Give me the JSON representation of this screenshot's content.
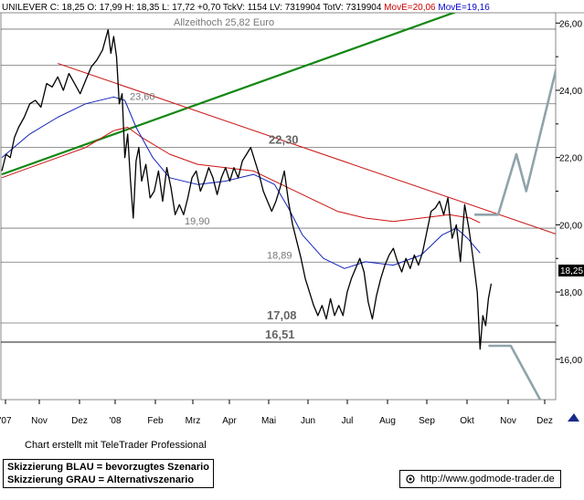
{
  "header": {
    "name": "UNILEVER",
    "stats": " C: 18,25  O: 17,99  H: 18,35  L: 17,72  +0,70  TckV: 1154  LV: 7319904  TotV: 7319904 ",
    "move_red": "MovE=20,06",
    "move_blue": "MovE=19,16"
  },
  "colors": {
    "price": "#000000",
    "ma_red": "#cc1111",
    "ma_blue": "#1122bb",
    "trend_green": "#118811",
    "resistance_red": "#cc2222",
    "scenario_gray": "#8fa3ab",
    "gridline": "#000000",
    "header_red": "#cc0000",
    "header_blue": "#0000cc"
  },
  "chart_data": {
    "type": "line",
    "title": "UNILEVER",
    "ylim": [
      14.8,
      26.4
    ],
    "y_ticks": [
      "16,00",
      "18,00",
      "20,00",
      "22,00",
      "24,00",
      "26,00"
    ],
    "x_tick_labels": [
      "'07",
      "Nov",
      "Dez",
      "'08",
      "Feb",
      "Mrz",
      "Apr",
      "Mai",
      "Jun",
      "Jul",
      "Aug",
      "Sep",
      "Okt",
      "Nov",
      "Dez"
    ],
    "current_price_label": "18,25",
    "annotations": [
      {
        "text": "Allzeithoch  25,82 Euro",
        "y": 25.82,
        "bold": false
      },
      {
        "text": "23,60",
        "y": 23.6,
        "bold": false
      },
      {
        "text": "22,30",
        "y": 22.3,
        "bold": true
      },
      {
        "text": "19,90",
        "y": 19.9,
        "bold": false
      },
      {
        "text": "18,89",
        "y": 18.89,
        "bold": false
      },
      {
        "text": "17,08",
        "y": 17.08,
        "bold": true
      },
      {
        "text": "16,51",
        "y": 16.51,
        "bold": true
      }
    ],
    "horizontal_levels": [
      25.82,
      24.75,
      23.6,
      22.3,
      19.9,
      18.89,
      17.08,
      16.51
    ],
    "series": [
      {
        "name": "",
        "style": "price",
        "values": [
          [
            0,
            21.6
          ],
          [
            3,
            22.1
          ],
          [
            6,
            22.0
          ],
          [
            9,
            22.6
          ],
          [
            12,
            22.9
          ],
          [
            16,
            23.2
          ],
          [
            20,
            23.6
          ],
          [
            24,
            23.7
          ],
          [
            28,
            23.5
          ],
          [
            32,
            24.2
          ],
          [
            36,
            24.1
          ],
          [
            40,
            24.4
          ],
          [
            44,
            24.0
          ],
          [
            48,
            24.5
          ],
          [
            52,
            24.2
          ],
          [
            56,
            23.9
          ],
          [
            60,
            24.3
          ],
          [
            64,
            24.7
          ],
          [
            68,
            24.9
          ],
          [
            72,
            25.2
          ],
          [
            76,
            25.8
          ],
          [
            78,
            25.1
          ],
          [
            80,
            25.6
          ],
          [
            82,
            25.0
          ],
          [
            84,
            23.6
          ],
          [
            86,
            23.9
          ],
          [
            88,
            22.0
          ],
          [
            90,
            22.7
          ],
          [
            92,
            21.3
          ],
          [
            94,
            20.2
          ],
          [
            96,
            21.9
          ],
          [
            98,
            22.3
          ],
          [
            100,
            21.3
          ],
          [
            103,
            21.8
          ],
          [
            106,
            20.8
          ],
          [
            109,
            21.0
          ],
          [
            112,
            21.6
          ],
          [
            115,
            20.7
          ],
          [
            118,
            21.7
          ],
          [
            121,
            21.1
          ],
          [
            124,
            20.3
          ],
          [
            127,
            20.6
          ],
          [
            130,
            20.3
          ],
          [
            133,
            20.8
          ],
          [
            136,
            21.4
          ],
          [
            139,
            21.6
          ],
          [
            142,
            21.0
          ],
          [
            145,
            21.3
          ],
          [
            148,
            21.7
          ],
          [
            151,
            21.4
          ],
          [
            154,
            20.9
          ],
          [
            157,
            21.4
          ],
          [
            160,
            21.7
          ],
          [
            163,
            21.3
          ],
          [
            166,
            21.7
          ],
          [
            169,
            21.4
          ],
          [
            172,
            21.9
          ],
          [
            175,
            22.1
          ],
          [
            178,
            22.3
          ],
          [
            181,
            21.9
          ],
          [
            184,
            21.5
          ],
          [
            187,
            21.0
          ],
          [
            190,
            20.7
          ],
          [
            193,
            20.4
          ],
          [
            196,
            20.7
          ],
          [
            199,
            21.1
          ],
          [
            202,
            21.6
          ],
          [
            205,
            20.7
          ],
          [
            208,
            20.0
          ],
          [
            211,
            19.5
          ],
          [
            214,
            19.0
          ],
          [
            217,
            18.4
          ],
          [
            220,
            18.0
          ],
          [
            223,
            17.6
          ],
          [
            226,
            17.3
          ],
          [
            229,
            17.6
          ],
          [
            232,
            17.2
          ],
          [
            235,
            17.8
          ],
          [
            238,
            17.3
          ],
          [
            241,
            17.6
          ],
          [
            244,
            17.3
          ],
          [
            247,
            18.0
          ],
          [
            250,
            18.4
          ],
          [
            253,
            18.7
          ],
          [
            256,
            19.0
          ],
          [
            259,
            18.6
          ],
          [
            262,
            17.7
          ],
          [
            265,
            17.2
          ],
          [
            268,
            17.9
          ],
          [
            271,
            18.4
          ],
          [
            274,
            18.8
          ],
          [
            277,
            19.1
          ],
          [
            280,
            19.3
          ],
          [
            283,
            18.9
          ],
          [
            286,
            18.6
          ],
          [
            289,
            19.0
          ],
          [
            292,
            18.7
          ],
          [
            295,
            19.1
          ],
          [
            298,
            18.8
          ],
          [
            301,
            19.2
          ],
          [
            304,
            19.8
          ],
          [
            307,
            20.4
          ],
          [
            310,
            20.5
          ],
          [
            313,
            20.7
          ],
          [
            316,
            20.3
          ],
          [
            319,
            20.8
          ],
          [
            322,
            19.6
          ],
          [
            325,
            20.0
          ],
          [
            328,
            18.9
          ],
          [
            331,
            20.6
          ],
          [
            334,
            19.9
          ],
          [
            337,
            19.0
          ],
          [
            340,
            18.0
          ],
          [
            342,
            16.3
          ],
          [
            344,
            17.3
          ],
          [
            346,
            17.0
          ],
          [
            348,
            17.8
          ],
          [
            350,
            18.25
          ]
        ]
      },
      {
        "name": "",
        "style": "ma_red",
        "values": [
          [
            0,
            21.4
          ],
          [
            20,
            21.7
          ],
          [
            40,
            22.0
          ],
          [
            60,
            22.3
          ],
          [
            80,
            22.8
          ],
          [
            90,
            22.9
          ],
          [
            100,
            22.6
          ],
          [
            120,
            22.1
          ],
          [
            140,
            21.8
          ],
          [
            160,
            21.7
          ],
          [
            180,
            21.6
          ],
          [
            200,
            21.2
          ],
          [
            220,
            20.8
          ],
          [
            240,
            20.4
          ],
          [
            260,
            20.2
          ],
          [
            280,
            20.1
          ],
          [
            300,
            20.2
          ],
          [
            320,
            20.3
          ],
          [
            335,
            20.2
          ],
          [
            342,
            20.06
          ]
        ]
      },
      {
        "name": "",
        "style": "ma_blue",
        "values": [
          [
            0,
            22.0
          ],
          [
            20,
            22.7
          ],
          [
            40,
            23.2
          ],
          [
            60,
            23.6
          ],
          [
            80,
            23.8
          ],
          [
            88,
            23.7
          ],
          [
            96,
            22.9
          ],
          [
            108,
            22.0
          ],
          [
            120,
            21.4
          ],
          [
            140,
            21.2
          ],
          [
            160,
            21.3
          ],
          [
            180,
            21.5
          ],
          [
            195,
            21.2
          ],
          [
            205,
            20.5
          ],
          [
            215,
            19.7
          ],
          [
            230,
            19.0
          ],
          [
            245,
            18.7
          ],
          [
            260,
            18.9
          ],
          [
            280,
            18.8
          ],
          [
            300,
            19.1
          ],
          [
            315,
            19.7
          ],
          [
            325,
            19.9
          ],
          [
            333,
            19.6
          ],
          [
            342,
            19.16
          ]
        ]
      },
      {
        "name": "",
        "style": "trend_green",
        "values": [
          [
            0,
            21.5
          ],
          [
            336,
            26.5
          ]
        ]
      },
      {
        "name": "",
        "style": "resistance_red",
        "values": [
          [
            40,
            24.8
          ],
          [
            398,
            19.7
          ]
        ]
      },
      {
        "name": "",
        "style": "scenario_blue",
        "values": [
          [
            338,
            20.3
          ],
          [
            355,
            20.3
          ],
          [
            368,
            22.1
          ],
          [
            375,
            21.0
          ],
          [
            398,
            24.9
          ]
        ]
      },
      {
        "name": "",
        "style": "scenario_gray",
        "values": [
          [
            348,
            16.4
          ],
          [
            364,
            16.4
          ],
          [
            385,
            14.8
          ]
        ]
      }
    ]
  },
  "footer": {
    "credit": "Chart erstellt mit TeleTrader Professional",
    "legend_line1": "Skizzierung BLAU = bevorzugtes Szenario",
    "legend_line2": "Skizzierung GRAU = Alternativszenario",
    "url": "http://www.godmode-trader.de"
  }
}
